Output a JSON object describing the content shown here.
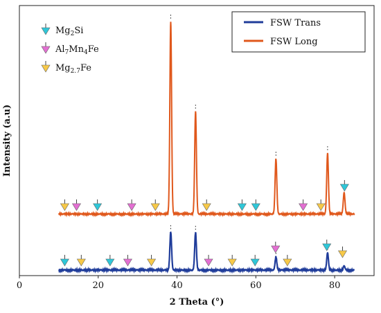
{
  "chart_data": {
    "type": "line",
    "xlabel": "2 Theta (°)",
    "ylabel": "Intensity (a.u)",
    "xlim": [
      0,
      90
    ],
    "xticks": [
      "0",
      "20",
      "40",
      "60",
      "80"
    ],
    "series": [
      {
        "name": "FSW Trans",
        "color": "#1f3c9a",
        "baseline": 0,
        "peaks": [
          {
            "x": 38.4,
            "y": 55
          },
          {
            "x": 44.7,
            "y": 54
          },
          {
            "x": 65.1,
            "y": 19
          },
          {
            "x": 78.2,
            "y": 25
          },
          {
            "x": 82.4,
            "y": 6
          }
        ]
      },
      {
        "name": "FSW Long",
        "color": "#e0581c",
        "baseline": 0,
        "peaks": [
          {
            "x": 38.4,
            "y": 278
          },
          {
            "x": 44.7,
            "y": 148
          },
          {
            "x": 65.1,
            "y": 80
          },
          {
            "x": 78.2,
            "y": 88
          },
          {
            "x": 82.4,
            "y": 31
          }
        ]
      }
    ],
    "phases": [
      {
        "key": "mg2si",
        "color": "#2fc7d8",
        "parts": [
          "Mg",
          "2",
          "Si"
        ],
        "sub_mask": [
          false,
          true,
          false
        ]
      },
      {
        "key": "al7mn4fe",
        "color": "#e36fd2",
        "parts": [
          "Al",
          "7",
          "Mn",
          "4",
          "Fe"
        ],
        "sub_mask": [
          false,
          true,
          false,
          true,
          false
        ]
      },
      {
        "key": "mg27fe",
        "color": "#f7c948",
        "parts": [
          "Mg",
          "2.7",
          "Fe"
        ],
        "sub_mask": [
          false,
          true,
          false
        ]
      }
    ],
    "markers_long": [
      {
        "x": 11.5,
        "phase": "mg27fe"
      },
      {
        "x": 14.5,
        "phase": "al7mn4fe"
      },
      {
        "x": 19.8,
        "phase": "mg2si"
      },
      {
        "x": 28.5,
        "phase": "al7mn4fe"
      },
      {
        "x": 34.5,
        "phase": "mg27fe"
      },
      {
        "x": 47.5,
        "phase": "mg27fe"
      },
      {
        "x": 56.5,
        "phase": "mg2si"
      },
      {
        "x": 60,
        "phase": "mg2si"
      },
      {
        "x": 72,
        "phase": "al7mn4fe"
      },
      {
        "x": 76.5,
        "phase": "mg27fe"
      },
      {
        "x": 82.5,
        "phase": "mg2si"
      }
    ],
    "markers_trans": [
      {
        "x": 11.5,
        "phase": "mg2si"
      },
      {
        "x": 15.7,
        "phase": "mg27fe"
      },
      {
        "x": 23,
        "phase": "mg2si"
      },
      {
        "x": 27.5,
        "phase": "al7mn4fe"
      },
      {
        "x": 33.5,
        "phase": "mg27fe"
      },
      {
        "x": 48,
        "phase": "al7mn4fe"
      },
      {
        "x": 54,
        "phase": "mg27fe"
      },
      {
        "x": 59.8,
        "phase": "mg2si"
      },
      {
        "x": 65,
        "phase": "al7mn4fe"
      },
      {
        "x": 68,
        "phase": "mg27fe"
      },
      {
        "x": 78,
        "phase": "mg2si"
      },
      {
        "x": 82,
        "phase": "mg27fe"
      }
    ]
  }
}
